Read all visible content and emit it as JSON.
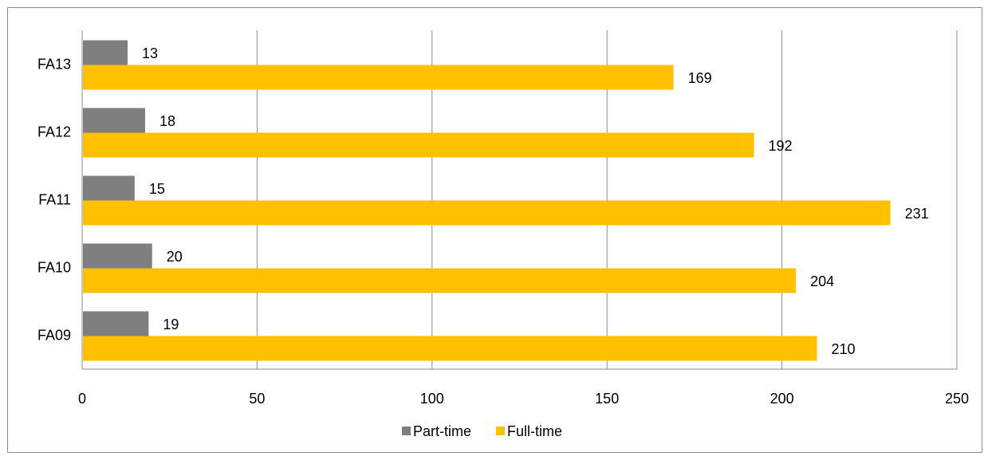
{
  "chart_data": {
    "type": "bar",
    "orientation": "horizontal",
    "categories": [
      "FA13",
      "FA12",
      "FA11",
      "FA10",
      "FA09"
    ],
    "series": [
      {
        "name": "Part-time",
        "color": "#7f7f7f",
        "values": [
          13,
          18,
          15,
          20,
          19
        ]
      },
      {
        "name": "Full-time",
        "color": "#ffc000",
        "values": [
          169,
          192,
          231,
          204,
          210
        ]
      }
    ],
    "xlim": [
      0,
      250
    ],
    "x_ticks": [
      0,
      50,
      100,
      150,
      200,
      250
    ],
    "grid": true,
    "data_labels": true,
    "legend_position": "bottom",
    "title": "",
    "xlabel": "",
    "ylabel": ""
  }
}
